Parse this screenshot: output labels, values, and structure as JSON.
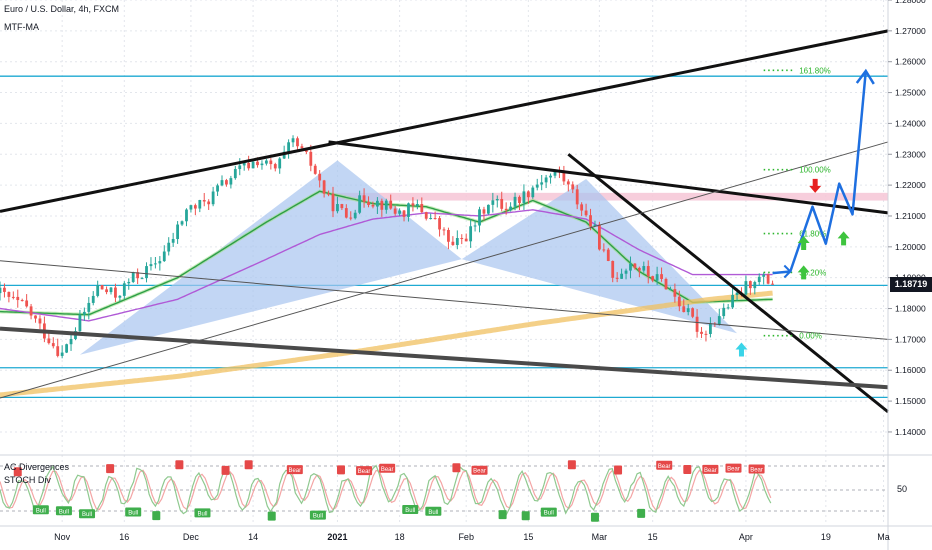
{
  "header": {
    "title": "Euro / U.S. Dollar, 4h, FXCM",
    "indicator": "MTF-MA"
  },
  "lower_pane": {
    "title": "AC Divergences",
    "subtitle": "STOCH Div",
    "level_label": "50",
    "bull_label": "Bull",
    "bear_label": "Bear"
  },
  "price_badge": "1.18719",
  "colors": {
    "up": "#26a69a",
    "down": "#ef5350",
    "ma_green": "#2e9e47",
    "ma_purple": "#b05ad6",
    "ma_orange": "#f0c060",
    "harmonic_fill": "#a8c4f0",
    "horizontal_cyan": "#1eaad2",
    "trend_black": "#111111",
    "projection_blue": "#1e6fe0",
    "arrow_green": "#3ec43e",
    "arrow_red": "#e62020",
    "arrow_cyan": "#3ad4e8",
    "fib_green": "#2bb52b",
    "pink_zone": "#f6c6d6",
    "badge_bg": "#131722"
  },
  "chart_data": {
    "type": "line",
    "symbol": "EURUSD",
    "timeframe": "4h",
    "title": "Euro / U.S. Dollar, 4h, FXCM",
    "y_axis": {
      "ticks": [
        "1.28000",
        "1.27000",
        "1.26000",
        "1.25000",
        "1.24000",
        "1.23000",
        "1.22000",
        "1.21000",
        "1.20000",
        "1.19000",
        "1.18000",
        "1.17000",
        "1.16000",
        "1.15000",
        "1.14000"
      ],
      "ylim": [
        1.1335,
        1.28
      ],
      "position": "right"
    },
    "x_axis": {
      "ticks": [
        "Nov",
        "16",
        "Dec",
        "14",
        "2021",
        "18",
        "Feb",
        "15",
        "Mar",
        "15",
        "Apr",
        "19",
        "Ma"
      ],
      "xlim": [
        0,
        100
      ]
    },
    "price_series": {
      "name": "EURUSD",
      "x": [
        0,
        3,
        5,
        7,
        9,
        11,
        13,
        15,
        17,
        19,
        21,
        23,
        25,
        27,
        29,
        31,
        33,
        35,
        37,
        39,
        41,
        43,
        45,
        47,
        49,
        51,
        53,
        55,
        57,
        59,
        61,
        63,
        65,
        67,
        69,
        71,
        73,
        75,
        77,
        79,
        81,
        83,
        85,
        87
      ],
      "values": [
        1.185,
        1.18,
        1.172,
        1.165,
        1.176,
        1.187,
        1.184,
        1.19,
        1.193,
        1.2,
        1.212,
        1.214,
        1.22,
        1.225,
        1.228,
        1.225,
        1.234,
        1.227,
        1.215,
        1.21,
        1.216,
        1.214,
        1.211,
        1.213,
        1.208,
        1.2,
        1.205,
        1.215,
        1.213,
        1.217,
        1.222,
        1.224,
        1.215,
        1.205,
        1.19,
        1.195,
        1.191,
        1.188,
        1.18,
        1.172,
        1.178,
        1.184,
        1.19,
        1.1885
      ]
    },
    "moving_averages": [
      {
        "color": "green",
        "x": [
          0,
          10,
          20,
          30,
          36,
          42,
          48,
          54,
          60,
          66,
          72,
          78,
          87
        ],
        "values": [
          1.179,
          1.178,
          1.19,
          1.208,
          1.218,
          1.214,
          1.213,
          1.208,
          1.215,
          1.208,
          1.192,
          1.182,
          1.183
        ]
      },
      {
        "color": "purple",
        "x": [
          0,
          10,
          20,
          30,
          36,
          42,
          48,
          54,
          60,
          66,
          72,
          78,
          87
        ],
        "values": [
          1.18,
          1.176,
          1.183,
          1.196,
          1.204,
          1.209,
          1.211,
          1.21,
          1.212,
          1.209,
          1.199,
          1.191,
          1.191
        ]
      },
      {
        "color": "orange",
        "x": [
          0,
          20,
          40,
          60,
          70,
          80,
          87
        ],
        "values": [
          1.152,
          1.158,
          1.166,
          1.175,
          1.179,
          1.183,
          1.185
        ]
      }
    ],
    "harmonic_patterns": [
      {
        "points": [
          [
            9,
            1.165
          ],
          [
            38,
            1.228
          ],
          [
            52,
            1.196
          ],
          [
            66,
            1.222
          ],
          [
            83,
            1.172
          ]
        ]
      }
    ],
    "fib_levels": [
      {
        "label": "161.80%",
        "value": 1.2572
      },
      {
        "label": "100.00%",
        "value": 1.225
      },
      {
        "label": "61.80%",
        "value": 1.2043
      },
      {
        "label": "38.20%",
        "value": 1.1917
      },
      {
        "label": "0.00%",
        "value": 1.1712
      }
    ],
    "horizontal_levels": [
      1.2553,
      1.1875,
      1.1608,
      1.1512
    ],
    "pink_zone": [
      1.215,
      1.2175
    ],
    "trendlines": [
      {
        "style": "thick",
        "x": [
          0,
          100
        ],
        "values": [
          1.2115,
          1.27
        ]
      },
      {
        "style": "thick",
        "x": [
          37,
          100
        ],
        "values": [
          1.234,
          1.211
        ]
      },
      {
        "style": "thick",
        "x": [
          64,
          100
        ],
        "values": [
          1.23,
          1.1465
        ]
      },
      {
        "style": "thick-gray",
        "x": [
          0,
          100
        ],
        "values": [
          1.1735,
          1.1545
        ]
      },
      {
        "style": "thin",
        "x": [
          0,
          100
        ],
        "values": [
          1.151,
          1.234
        ]
      },
      {
        "style": "thin",
        "x": [
          0,
          100
        ],
        "values": [
          1.1955,
          1.17
        ]
      }
    ],
    "projection": {
      "x": [
        87,
        89,
        91.5,
        93,
        94.5,
        96,
        97.5
      ],
      "values": [
        1.1915,
        1.192,
        1.213,
        1.201,
        1.2205,
        1.2105,
        1.257
      ]
    }
  }
}
